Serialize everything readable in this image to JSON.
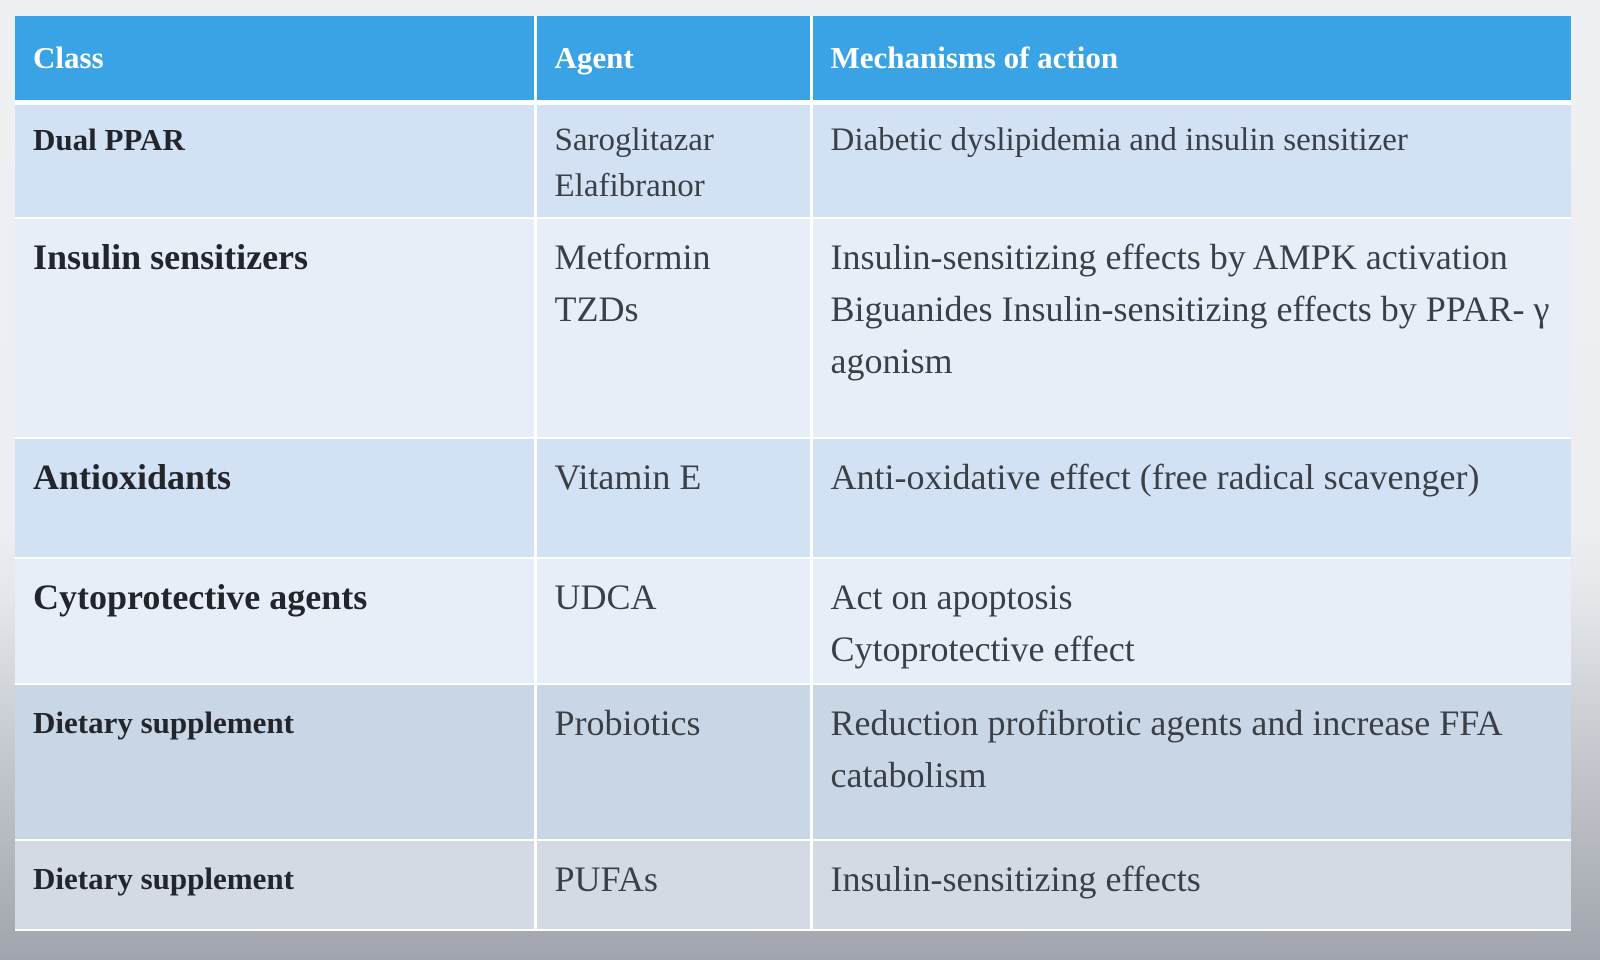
{
  "table": {
    "headers": [
      "Class",
      "Agent",
      "Mechanisms of action"
    ],
    "rows": [
      {
        "class": "Dual PPAR",
        "agents": [
          "Saroglitazar",
          "Elafibranor"
        ],
        "mechanisms": [
          "Diabetic dyslipidemia and insulin sensitizer"
        ]
      },
      {
        "class": "Insulin sensitizers",
        "agents": [
          "Metformin",
          "TZDs"
        ],
        "mechanisms": [
          "Insulin-sensitizing effects by AMPK activation",
          "Biguanides Insulin-sensitizing effects by PPAR- γ agonism"
        ]
      },
      {
        "class": "Antioxidants",
        "agents": [
          "Vitamin E"
        ],
        "mechanisms": [
          "Anti-oxidative effect (free radical scavenger)"
        ]
      },
      {
        "class": "Cytoprotective agents",
        "agents": [
          "UDCA"
        ],
        "mechanisms": [
          "Act on apoptosis",
          "Cytoprotective effect"
        ]
      },
      {
        "class": "Dietary supplement",
        "agents": [
          "Probiotics"
        ],
        "mechanisms": [
          "Reduction profibrotic agents and increase FFA catabolism"
        ]
      },
      {
        "class": "Dietary supplement",
        "agents": [
          "PUFAs"
        ],
        "mechanisms": [
          "Insulin-sensitizing effects"
        ]
      }
    ]
  },
  "colors": {
    "header_bg": "#3aa3e6",
    "header_text": "#ffffff",
    "row_bg_a": "#d2e2f4",
    "row_bg_b": "#e8eef7",
    "body_text": "#3b3f47"
  }
}
